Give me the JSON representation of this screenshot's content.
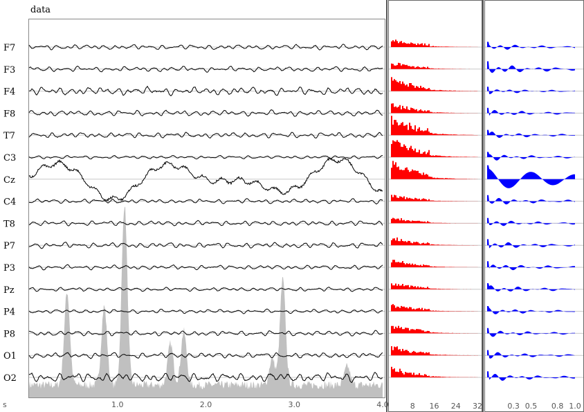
{
  "title": "data",
  "time_axis": {
    "unit_label": "s",
    "ticks": [
      "1.0",
      "2.0",
      "3.0",
      "4.0"
    ],
    "range": [
      0,
      4.0
    ]
  },
  "spectrum_axis": {
    "ticks": [
      "8",
      "16",
      "24",
      "32"
    ],
    "range": [
      0,
      32
    ]
  },
  "autocorr_axis": {
    "ticks": [
      "0.3",
      "0.5",
      "0.8",
      "1.0"
    ],
    "range": [
      0,
      1.0
    ]
  },
  "chart_data": [
    {
      "type": "line",
      "panel": "time-series",
      "title": "data",
      "series_labels": [
        "F7",
        "F3",
        "F4",
        "F8",
        "T7",
        "C3",
        "Cz",
        "C4",
        "T8",
        "P7",
        "P3",
        "Pz",
        "P4",
        "P8",
        "O1",
        "O2"
      ],
      "xlim": [
        0,
        4.0
      ],
      "background_area": {
        "color": "#c0c0c0",
        "peaks": [
          {
            "x": 0.43,
            "level": 0.45
          },
          {
            "x": 0.85,
            "level": 0.38
          },
          {
            "x": 1.08,
            "level": 0.87
          },
          {
            "x": 1.6,
            "level": 0.2
          },
          {
            "x": 1.75,
            "level": 0.26
          },
          {
            "x": 2.75,
            "level": 0.13
          },
          {
            "x": 2.87,
            "level": 0.51
          },
          {
            "x": 3.6,
            "level": 0.09
          }
        ],
        "floor": 0.04
      },
      "traces": [
        {
          "name": "F7",
          "amp": 0.45
        },
        {
          "name": "F3",
          "amp": 0.45
        },
        {
          "name": "F4",
          "amp": 0.7
        },
        {
          "name": "F8",
          "amp": 0.5
        },
        {
          "name": "T7",
          "amp": 0.5
        },
        {
          "name": "C3",
          "amp": 0.3
        },
        {
          "name": "Cz",
          "amp": 1.6,
          "slow": true
        },
        {
          "name": "C4",
          "amp": 0.4
        },
        {
          "name": "T8",
          "amp": 0.45
        },
        {
          "name": "P7",
          "amp": 0.5
        },
        {
          "name": "P3",
          "amp": 0.4
        },
        {
          "name": "Pz",
          "amp": 0.35
        },
        {
          "name": "P4",
          "amp": 0.35
        },
        {
          "name": "P8",
          "amp": 0.45
        },
        {
          "name": "O1",
          "amp": 0.5
        },
        {
          "name": "O2",
          "amp": 0.8
        }
      ]
    },
    {
      "type": "bar",
      "panel": "power-spectrum",
      "color": "#ff0000",
      "xlim": [
        0,
        32
      ],
      "ticks": [
        8,
        16,
        24,
        32
      ],
      "rows": [
        "F7",
        "F3",
        "F4",
        "F8",
        "T7",
        "C3",
        "Cz",
        "C4",
        "T8",
        "P7",
        "P3",
        "Pz",
        "P4",
        "P8",
        "O1",
        "O2"
      ],
      "peak_heights": [
        0.45,
        0.35,
        0.75,
        0.5,
        1.0,
        1.0,
        1.0,
        0.35,
        0.3,
        0.4,
        0.4,
        0.35,
        0.4,
        0.5,
        0.5,
        0.5
      ]
    },
    {
      "type": "area",
      "panel": "autocorrelation",
      "color": "#0000ff",
      "xlim": [
        0,
        1.0
      ],
      "ticks": [
        0.3,
        0.5,
        0.8,
        1.0
      ],
      "rows": [
        "F7",
        "F3",
        "F4",
        "F8",
        "T7",
        "C3",
        "Cz",
        "C4",
        "T8",
        "P7",
        "P3",
        "Pz",
        "P4",
        "P8",
        "O1",
        "O2"
      ],
      "envelopes": [
        0.3,
        0.45,
        0.25,
        0.3,
        0.3,
        0.3,
        0.8,
        0.35,
        0.3,
        0.35,
        0.35,
        0.35,
        0.3,
        0.3,
        0.3,
        0.35
      ]
    }
  ]
}
